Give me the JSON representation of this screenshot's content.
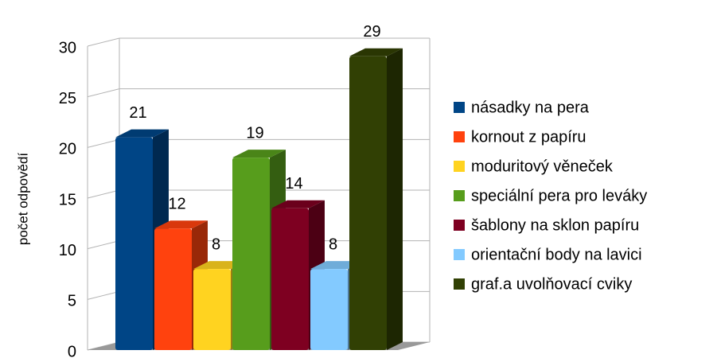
{
  "chart_data": {
    "type": "bar3d",
    "y_label": "počet odpovědí",
    "ylim": [
      0,
      30
    ],
    "yticks": [
      0,
      5,
      10,
      15,
      20,
      25,
      30
    ],
    "grid": true,
    "legend": "right",
    "series": [
      {
        "name": "násadky na pera",
        "color": "#004586",
        "values": [
          21
        ]
      },
      {
        "name": "kornout z papíru",
        "color": "#ff420e",
        "values": [
          12
        ]
      },
      {
        "name": "moduritový věneček",
        "color": "#ffd320",
        "values": [
          8
        ]
      },
      {
        "name": "speciální pera pro leváky",
        "color": "#579d1c",
        "values": [
          19
        ]
      },
      {
        "name": "šablony na sklon papíru",
        "color": "#7e0021",
        "values": [
          14
        ]
      },
      {
        "name": "orientační body na lavici",
        "color": "#83caff",
        "values": [
          8
        ]
      },
      {
        "name": "graf.a uvolňovací cviky",
        "color": "#314004",
        "values": [
          29
        ]
      }
    ]
  }
}
